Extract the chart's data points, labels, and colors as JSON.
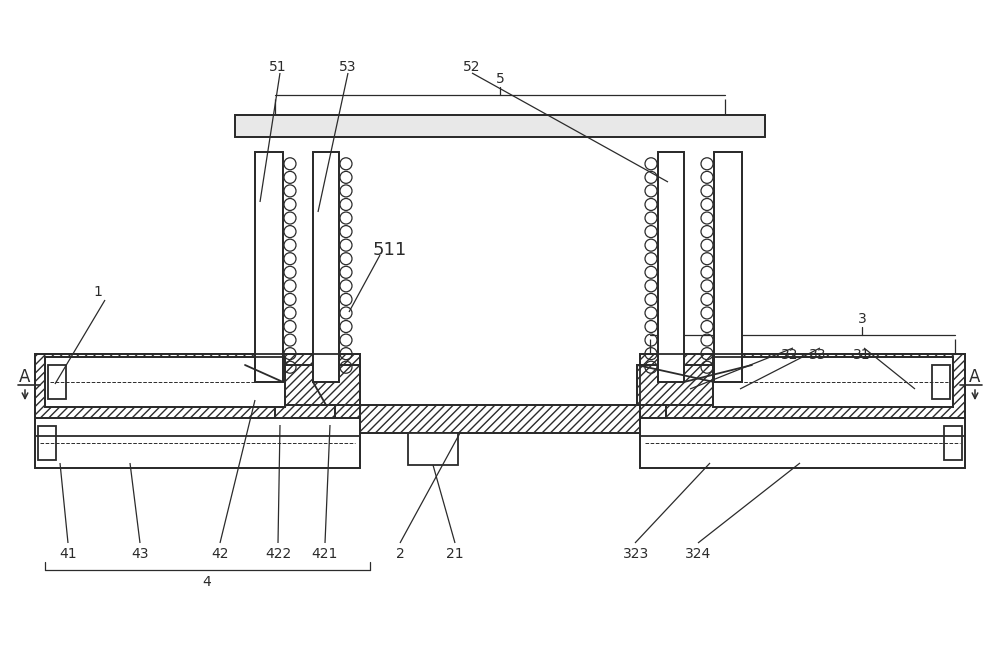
{
  "bg_color": "#ffffff",
  "line_color": "#2b2b2b",
  "fig_width": 10.0,
  "fig_height": 6.52,
  "dpi": 100
}
